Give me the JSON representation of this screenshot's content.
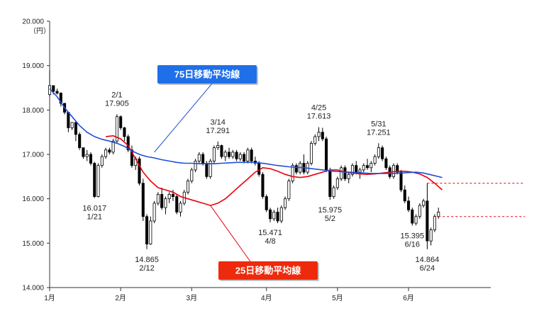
{
  "chart_data": {
    "type": "candlestick",
    "title": "",
    "ylabel": "（円）",
    "ylim": [
      14000,
      20000
    ],
    "yticks": [
      14000,
      15000,
      16000,
      17000,
      18000,
      19000,
      20000
    ],
    "ytick_labels": [
      "14.000",
      "15.000",
      "16.000",
      "17.000",
      "18.000",
      "19.000",
      "20.000"
    ],
    "xlim": [
      0,
      118
    ],
    "x_ticks": [
      {
        "x": 0,
        "label": "1月"
      },
      {
        "x": 19,
        "label": "2月"
      },
      {
        "x": 38,
        "label": "3月"
      },
      {
        "x": 58,
        "label": "4月"
      },
      {
        "x": 77,
        "label": "5月"
      },
      {
        "x": 96,
        "label": "6月"
      }
    ],
    "grid": false,
    "colors": {
      "up": "#ffffff",
      "down": "#000000",
      "ma25": "#e8000b",
      "ma75": "#1f4fd8",
      "ref": "#e8000b"
    },
    "ohlc": [
      [
        0,
        18350,
        18890,
        18300,
        18550
      ],
      [
        1,
        18550,
        18550,
        18350,
        18420
      ],
      [
        2,
        18420,
        18480,
        18350,
        18380
      ],
      [
        3,
        18380,
        18400,
        18080,
        18150
      ],
      [
        4,
        18150,
        18160,
        17900,
        17950
      ],
      [
        5,
        17950,
        17950,
        17500,
        17600
      ],
      [
        6,
        17600,
        17700,
        17550,
        17720
      ],
      [
        7,
        17720,
        17740,
        17300,
        17450
      ],
      [
        8,
        17450,
        17500,
        17100,
        17150
      ],
      [
        9,
        17150,
        17150,
        16900,
        16950
      ],
      [
        10,
        16950,
        17100,
        16850,
        17000
      ],
      [
        11,
        17000,
        17050,
        16750,
        16800
      ],
      [
        12,
        16800,
        16830,
        16017,
        16050
      ],
      [
        13,
        16050,
        16800,
        16030,
        16750
      ],
      [
        14,
        16750,
        17000,
        16700,
        16950
      ],
      [
        15,
        16950,
        17150,
        16900,
        17100
      ],
      [
        16,
        17100,
        17150,
        17000,
        17050
      ],
      [
        17,
        17050,
        17350,
        17000,
        17300
      ],
      [
        18,
        17300,
        17905,
        17250,
        17850
      ],
      [
        19,
        17850,
        17880,
        17550,
        17600
      ],
      [
        20,
        17600,
        17620,
        17300,
        17400
      ],
      [
        21,
        17400,
        17450,
        17050,
        17100
      ],
      [
        22,
        17100,
        17200,
        16700,
        16750
      ],
      [
        23,
        16750,
        16950,
        16650,
        16900
      ],
      [
        24,
        16900,
        16950,
        16300,
        16350
      ],
      [
        25,
        16350,
        16450,
        15500,
        15600
      ],
      [
        26,
        15600,
        15650,
        14865,
        14980
      ],
      [
        27,
        14980,
        15600,
        14960,
        15500
      ],
      [
        28,
        15500,
        15950,
        15450,
        15900
      ],
      [
        29,
        15900,
        16150,
        15850,
        16100
      ],
      [
        30,
        16100,
        16250,
        15750,
        15800
      ],
      [
        31,
        15800,
        16050,
        15650,
        16000
      ],
      [
        32,
        16000,
        16150,
        15900,
        16100
      ],
      [
        33,
        16100,
        16200,
        15950,
        16050
      ],
      [
        34,
        16050,
        16100,
        15650,
        15700
      ],
      [
        35,
        15700,
        15950,
        15600,
        15900
      ],
      [
        36,
        15900,
        16200,
        15850,
        16150
      ],
      [
        37,
        16150,
        16450,
        16100,
        16400
      ],
      [
        38,
        16400,
        16700,
        16350,
        16650
      ],
      [
        39,
        16650,
        16900,
        16600,
        16850
      ],
      [
        40,
        16850,
        17050,
        16800,
        17000
      ],
      [
        41,
        17000,
        17050,
        16750,
        16800
      ],
      [
        42,
        16800,
        16850,
        16450,
        16500
      ],
      [
        43,
        16500,
        16900,
        16450,
        16850
      ],
      [
        44,
        16850,
        17200,
        16800,
        17150
      ],
      [
        45,
        17150,
        17291,
        17100,
        17200
      ],
      [
        46,
        17200,
        17220,
        16900,
        16950
      ],
      [
        47,
        16950,
        17100,
        16850,
        17050
      ],
      [
        48,
        17050,
        17150,
        16900,
        16950
      ],
      [
        49,
        16950,
        17100,
        16900,
        17050
      ],
      [
        50,
        17050,
        17100,
        16850,
        16900
      ],
      [
        51,
        16900,
        17050,
        16850,
        17000
      ],
      [
        52,
        17000,
        17050,
        16800,
        16850
      ],
      [
        53,
        16850,
        17150,
        16800,
        17100
      ],
      [
        54,
        17100,
        17150,
        16800,
        16850
      ],
      [
        55,
        16850,
        16950,
        16750,
        16800
      ],
      [
        56,
        16800,
        16850,
        16500,
        16550
      ],
      [
        57,
        16550,
        16600,
        16000,
        16050
      ],
      [
        58,
        16050,
        16100,
        15700,
        15750
      ],
      [
        59,
        15750,
        15800,
        15471,
        15550
      ],
      [
        60,
        15550,
        15750,
        15500,
        15700
      ],
      [
        61,
        15700,
        15800,
        15450,
        15500
      ],
      [
        62,
        15500,
        15850,
        15450,
        15800
      ],
      [
        63,
        15800,
        16050,
        15750,
        16000
      ],
      [
        64,
        16000,
        16450,
        15950,
        16400
      ],
      [
        65,
        16400,
        16800,
        16350,
        16750
      ],
      [
        66,
        16750,
        16800,
        16550,
        16600
      ],
      [
        67,
        16600,
        16850,
        16550,
        16800
      ],
      [
        68,
        16800,
        17000,
        16550,
        16600
      ],
      [
        69,
        16600,
        16850,
        16550,
        16800
      ],
      [
        70,
        16800,
        17300,
        16750,
        17250
      ],
      [
        71,
        17250,
        17450,
        17200,
        17400
      ],
      [
        72,
        17400,
        17613,
        17300,
        17500
      ],
      [
        73,
        17500,
        17600,
        17300,
        17350
      ],
      [
        74,
        17350,
        17400,
        16600,
        16650
      ],
      [
        75,
        16650,
        16700,
        15975,
        16050
      ],
      [
        76,
        16050,
        16300,
        16000,
        16250
      ],
      [
        77,
        16250,
        16500,
        16200,
        16450
      ],
      [
        78,
        16450,
        16750,
        16400,
        16700
      ],
      [
        79,
        16700,
        16750,
        16400,
        16450
      ],
      [
        80,
        16450,
        16600,
        16350,
        16550
      ],
      [
        81,
        16550,
        16800,
        16500,
        16750
      ],
      [
        82,
        16750,
        16850,
        16550,
        16600
      ],
      [
        83,
        16600,
        16700,
        16450,
        16650
      ],
      [
        84,
        16650,
        16800,
        16600,
        16750
      ],
      [
        85,
        16750,
        16900,
        16650,
        16700
      ],
      [
        86,
        16700,
        16850,
        16600,
        16800
      ],
      [
        87,
        16800,
        17000,
        16750,
        16950
      ],
      [
        88,
        16950,
        17251,
        16900,
        17150
      ],
      [
        89,
        17150,
        17200,
        16850,
        16900
      ],
      [
        90,
        16900,
        16950,
        16650,
        16700
      ],
      [
        91,
        16700,
        16750,
        16450,
        16500
      ],
      [
        92,
        16500,
        16800,
        16450,
        16750
      ],
      [
        93,
        16750,
        16800,
        16550,
        16600
      ],
      [
        94,
        16600,
        16650,
        16150,
        16200
      ],
      [
        95,
        16200,
        16300,
        15900,
        15950
      ],
      [
        96,
        15950,
        16050,
        15700,
        15750
      ],
      [
        97,
        15750,
        15800,
        15395,
        15450
      ],
      [
        98,
        15450,
        15650,
        15400,
        15600
      ],
      [
        99,
        15600,
        15900,
        15550,
        15850
      ],
      [
        100,
        15850,
        16000,
        15800,
        15950
      ],
      [
        101,
        15950,
        16350,
        14864,
        15050
      ],
      [
        102,
        15050,
        15350,
        14950,
        15300
      ],
      [
        103,
        15300,
        15650,
        15250,
        15600
      ],
      [
        104,
        15600,
        15800,
        15550,
        15700
      ]
    ],
    "series": [
      {
        "name": "25日移動平均線",
        "color": "#e8000b",
        "points": [
          [
            15,
            17400
          ],
          [
            17,
            17420
          ],
          [
            19,
            17350
          ],
          [
            21,
            17200
          ],
          [
            23,
            16900
          ],
          [
            25,
            16600
          ],
          [
            27,
            16400
          ],
          [
            29,
            16250
          ],
          [
            31,
            16200
          ],
          [
            33,
            16150
          ],
          [
            35,
            16050
          ],
          [
            37,
            16000
          ],
          [
            39,
            15950
          ],
          [
            41,
            15900
          ],
          [
            43,
            15850
          ],
          [
            45,
            15900
          ],
          [
            47,
            16000
          ],
          [
            49,
            16150
          ],
          [
            51,
            16300
          ],
          [
            53,
            16450
          ],
          [
            55,
            16600
          ],
          [
            57,
            16700
          ],
          [
            59,
            16680
          ],
          [
            61,
            16620
          ],
          [
            63,
            16550
          ],
          [
            65,
            16500
          ],
          [
            67,
            16480
          ],
          [
            69,
            16500
          ],
          [
            71,
            16550
          ],
          [
            73,
            16600
          ],
          [
            75,
            16650
          ],
          [
            77,
            16650
          ],
          [
            79,
            16600
          ],
          [
            81,
            16580
          ],
          [
            83,
            16560
          ],
          [
            85,
            16550
          ],
          [
            87,
            16560
          ],
          [
            89,
            16580
          ],
          [
            91,
            16600
          ],
          [
            93,
            16620
          ],
          [
            95,
            16620
          ],
          [
            97,
            16600
          ],
          [
            99,
            16560
          ],
          [
            101,
            16480
          ],
          [
            103,
            16350
          ],
          [
            105,
            16200
          ]
        ]
      },
      {
        "name": "75日移動平均線",
        "color": "#1f4fd8",
        "points": [
          [
            0,
            18480
          ],
          [
            2,
            18300
          ],
          [
            4,
            18050
          ],
          [
            6,
            17850
          ],
          [
            8,
            17650
          ],
          [
            10,
            17500
          ],
          [
            12,
            17400
          ],
          [
            14,
            17340
          ],
          [
            16,
            17300
          ],
          [
            18,
            17250
          ],
          [
            20,
            17180
          ],
          [
            22,
            17080
          ],
          [
            24,
            17000
          ],
          [
            26,
            16950
          ],
          [
            28,
            16920
          ],
          [
            30,
            16880
          ],
          [
            32,
            16850
          ],
          [
            34,
            16820
          ],
          [
            36,
            16800
          ],
          [
            38,
            16800
          ],
          [
            40,
            16790
          ],
          [
            42,
            16790
          ],
          [
            44,
            16790
          ],
          [
            46,
            16800
          ],
          [
            48,
            16810
          ],
          [
            50,
            16820
          ],
          [
            52,
            16820
          ],
          [
            54,
            16820
          ],
          [
            56,
            16810
          ],
          [
            58,
            16790
          ],
          [
            60,
            16760
          ],
          [
            62,
            16740
          ],
          [
            64,
            16720
          ],
          [
            66,
            16710
          ],
          [
            68,
            16700
          ],
          [
            70,
            16680
          ],
          [
            72,
            16660
          ],
          [
            74,
            16640
          ],
          [
            76,
            16620
          ],
          [
            78,
            16610
          ],
          [
            80,
            16600
          ],
          [
            82,
            16590
          ],
          [
            84,
            16580
          ],
          [
            86,
            16570
          ],
          [
            88,
            16570
          ],
          [
            90,
            16570
          ],
          [
            92,
            16570
          ],
          [
            94,
            16580
          ],
          [
            96,
            16590
          ],
          [
            98,
            16600
          ],
          [
            100,
            16580
          ],
          [
            102,
            16540
          ],
          [
            105,
            16480
          ]
        ]
      }
    ],
    "reference_lines": [
      {
        "value": 16350,
        "x_from": 101
      },
      {
        "value": 15600,
        "x_from": 104
      }
    ],
    "annotations": [
      {
        "x": 12,
        "y": 16017,
        "lines": [
          "16.017",
          "1/21"
        ],
        "position": "below"
      },
      {
        "x": 18,
        "y": 17905,
        "lines": [
          "2/1",
          "17.905"
        ],
        "position": "above"
      },
      {
        "x": 26,
        "y": 14865,
        "lines": [
          "14.865",
          "2/12"
        ],
        "position": "below"
      },
      {
        "x": 45,
        "y": 17291,
        "lines": [
          "3/14",
          "17.291"
        ],
        "position": "above"
      },
      {
        "x": 59,
        "y": 15471,
        "lines": [
          "15.471",
          "4/8"
        ],
        "position": "below"
      },
      {
        "x": 72,
        "y": 17613,
        "lines": [
          "4/25",
          "17.613"
        ],
        "position": "above"
      },
      {
        "x": 75,
        "y": 15975,
        "lines": [
          "15.975",
          "5/2"
        ],
        "position": "below"
      },
      {
        "x": 88,
        "y": 17251,
        "lines": [
          "5/31",
          "17.251"
        ],
        "position": "above"
      },
      {
        "x": 97,
        "y": 15395,
        "lines": [
          "15.395",
          "6/16"
        ],
        "position": "below"
      },
      {
        "x": 101,
        "y": 14864,
        "lines": [
          "14.864",
          "6/24"
        ],
        "position": "below"
      }
    ],
    "legend": [
      {
        "label": "75日移動平均線",
        "series": "75日移動平均線",
        "bg": "#1f6fe8",
        "pointer": {
          "x": 28,
          "y": 17050
        }
      },
      {
        "label": "25日移動平均線",
        "series": "25日移動平均線",
        "bg": "#ee2a0c",
        "pointer": {
          "x": 43,
          "y": 15850
        }
      }
    ]
  }
}
